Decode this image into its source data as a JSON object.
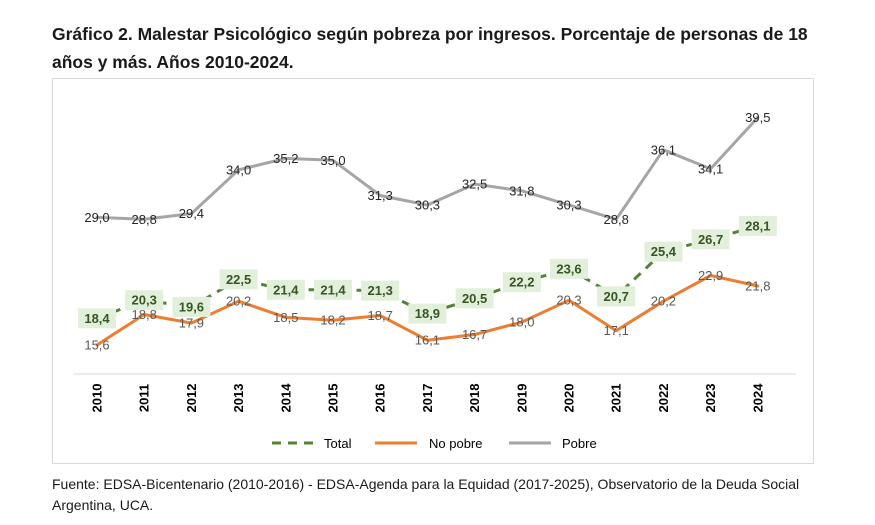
{
  "title": "Gráfico 2. Malestar Psicológico según pobreza por ingresos. Porcentaje de personas de 18 años y más. Años 2010-2024.",
  "source": "Fuente: EDSA-Bicentenario (2010-2016) - EDSA-Agenda para la Equidad (2017-2025), Observatorio de la Deuda Social Argentina, UCA.",
  "chart_data": {
    "type": "line",
    "categories": [
      "2010",
      "2011",
      "2012",
      "2013",
      "2014",
      "2015",
      "2016",
      "2017",
      "2018",
      "2019",
      "2020",
      "2021",
      "2022",
      "2023",
      "2024"
    ],
    "series": [
      {
        "name": "Total",
        "color": "#548235",
        "dashed": true,
        "values": [
          18.4,
          20.3,
          19.6,
          22.5,
          21.4,
          21.4,
          21.3,
          18.9,
          20.5,
          22.2,
          23.6,
          20.7,
          25.4,
          26.7,
          28.1
        ],
        "labels": [
          "18,4",
          "20,3",
          "19,6",
          "22,5",
          "21,4",
          "21,4",
          "21,3",
          "18,9",
          "20,5",
          "22,2",
          "23,6",
          "20,7",
          "25,4",
          "26,7",
          "28,1"
        ]
      },
      {
        "name": "No pobre",
        "color": "#ED7D31",
        "dashed": false,
        "values": [
          15.6,
          18.8,
          17.9,
          20.2,
          18.5,
          18.2,
          18.7,
          16.1,
          16.7,
          18.0,
          20.3,
          17.1,
          20.2,
          22.9,
          21.8
        ],
        "labels": [
          "15,6",
          "18,8",
          "17,9",
          "20,2",
          "18,5",
          "18,2",
          "18,7",
          "16,1",
          "16,7",
          "18,0",
          "20,3",
          "17,1",
          "20,2",
          "22,9",
          "21,8"
        ]
      },
      {
        "name": "Pobre",
        "color": "#A5A5A5",
        "dashed": false,
        "values": [
          29.0,
          28.8,
          29.4,
          34.0,
          35.2,
          35.0,
          31.3,
          30.3,
          32.5,
          31.8,
          30.3,
          28.8,
          36.1,
          34.1,
          39.5
        ],
        "labels": [
          "29,0",
          "28,8",
          "29,4",
          "34,0",
          "35,2",
          "35,0",
          "31,3",
          "30,3",
          "32,5",
          "31,8",
          "30,3",
          "28,8",
          "36,1",
          "34,1",
          "39,5"
        ]
      }
    ],
    "grid": false,
    "legend_position": "bottom"
  }
}
